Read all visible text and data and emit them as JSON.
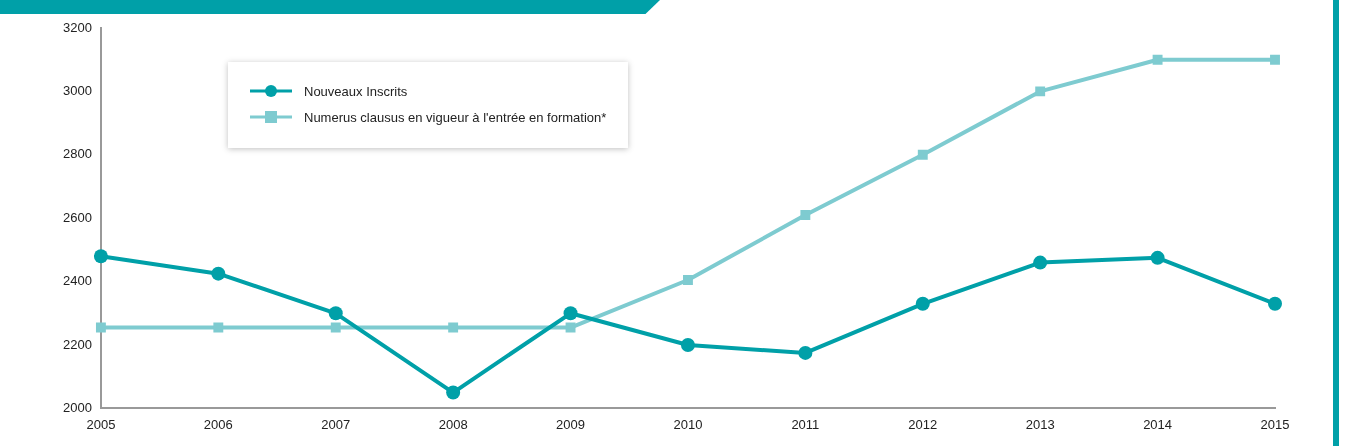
{
  "chart_data": {
    "type": "line",
    "categories": [
      "2005",
      "2006",
      "2007",
      "2008",
      "2009",
      "2010",
      "2011",
      "2012",
      "2013",
      "2014",
      "2015"
    ],
    "series": [
      {
        "name": "Nouveaux Inscrits",
        "color": "#00a0a8",
        "marker": "circle",
        "values": [
          2480,
          2425,
          2300,
          2050,
          2300,
          2200,
          2175,
          2330,
          2460,
          2475,
          2330
        ]
      },
      {
        "name": "Numerus clausus en vigueur à l'entrée en formation*",
        "color": "#7ecbd0",
        "marker": "square",
        "values": [
          2255,
          2255,
          2255,
          2255,
          2255,
          2405,
          2610,
          2800,
          3000,
          3100,
          3100
        ]
      }
    ],
    "ylim": [
      2000,
      3200
    ],
    "yticks": [
      2000,
      2200,
      2400,
      2600,
      2800,
      3000,
      3200
    ],
    "grid": false,
    "legend": "top left",
    "line_style": "solid"
  }
}
